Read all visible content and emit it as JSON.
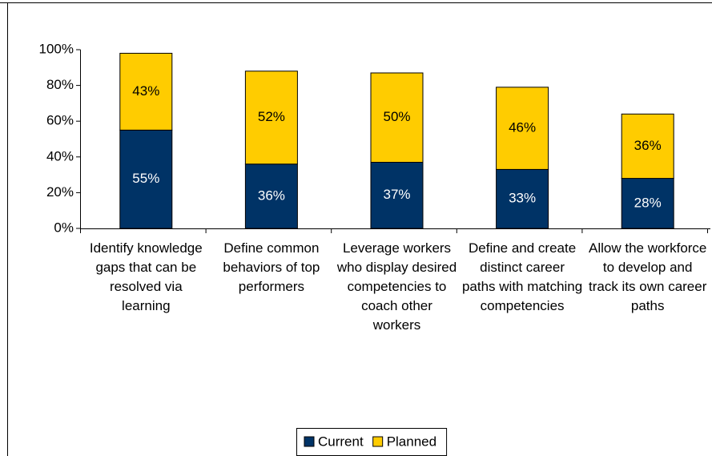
{
  "chart_data": {
    "type": "bar",
    "stacked": true,
    "categories": [
      "Identify knowledge gaps that can be resolved via learning",
      "Define common behaviors of top performers",
      "Leverage workers who display desired competencies to coach other workers",
      "Define and create distinct career paths with matching competencies",
      "Allow the workforce to develop and track its own career paths"
    ],
    "series": [
      {
        "name": "Current",
        "color": "#003366",
        "label_color": "#ffffff",
        "values": [
          55,
          36,
          37,
          33,
          28
        ],
        "value_labels": [
          "55%",
          "36%",
          "37%",
          "33%",
          "28%"
        ]
      },
      {
        "name": "Planned",
        "color": "#ffcc00",
        "label_color": "#000000",
        "values": [
          43,
          52,
          50,
          46,
          36
        ],
        "value_labels": [
          "43%",
          "52%",
          "50%",
          "46%",
          "36%"
        ]
      }
    ],
    "ylim": [
      0,
      100
    ],
    "yticks": [
      {
        "value": 0,
        "label": "0%"
      },
      {
        "value": 20,
        "label": "20%"
      },
      {
        "value": 40,
        "label": "40%"
      },
      {
        "value": 60,
        "label": "60%"
      },
      {
        "value": 80,
        "label": "80%"
      },
      {
        "value": 100,
        "label": "100%"
      }
    ],
    "legend": "bottom"
  }
}
